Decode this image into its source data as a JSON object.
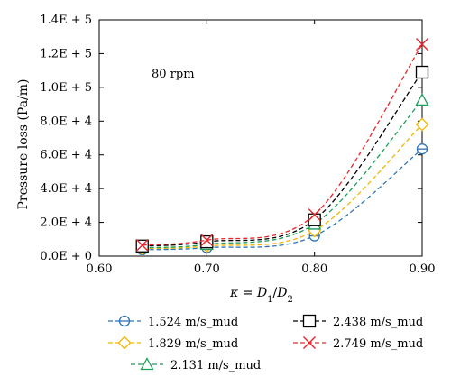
{
  "chart_data": {
    "type": "line",
    "title": "",
    "xlabel": "κ = D1/D2",
    "ylabel": "Pressure loss (Pa/m)",
    "xlim": [
      0.6,
      0.9
    ],
    "ylim": [
      0,
      140000
    ],
    "x_ticks": [
      {
        "value": 0.6,
        "label": "0.60"
      },
      {
        "value": 0.7,
        "label": "0.70"
      },
      {
        "value": 0.8,
        "label": "0.80"
      },
      {
        "value": 0.9,
        "label": "0.90"
      }
    ],
    "y_ticks": [
      {
        "value": 0,
        "label": "0.0E + 0"
      },
      {
        "value": 20000,
        "label": "2.0E + 4"
      },
      {
        "value": 40000,
        "label": "4.0E + 4"
      },
      {
        "value": 60000,
        "label": "6.0E + 4"
      },
      {
        "value": 80000,
        "label": "8.0E + 4"
      },
      {
        "value": 100000,
        "label": "1.0E + 5"
      },
      {
        "value": 120000,
        "label": "1.2E + 5"
      },
      {
        "value": 140000,
        "label": "1.4E + 5"
      }
    ],
    "grid": false,
    "legend_position": "bottom",
    "annotation": "80 rpm",
    "x": [
      0.64,
      0.7,
      0.8,
      0.9
    ],
    "series": [
      {
        "name": "1.524 m/s_mud",
        "values": [
          3800,
          5000,
          12000,
          63500
        ],
        "color": "#2f75b5",
        "marker": "circle-line"
      },
      {
        "name": "1.829 m/s_mud",
        "values": [
          4500,
          6000,
          15000,
          78000
        ],
        "color": "#f2b600",
        "marker": "diamond"
      },
      {
        "name": "2.131 m/s_mud",
        "values": [
          5000,
          7000,
          19000,
          92500
        ],
        "color": "#1e9e5a",
        "marker": "triangle"
      },
      {
        "name": "2.438 m/s_mud",
        "values": [
          6000,
          8500,
          21500,
          109000
        ],
        "color": "#000000",
        "marker": "square"
      },
      {
        "name": "2.749 m/s_mud",
        "values": [
          6500,
          9500,
          24500,
          125500
        ],
        "color": "#e8262a",
        "marker": "asterisk"
      }
    ]
  }
}
